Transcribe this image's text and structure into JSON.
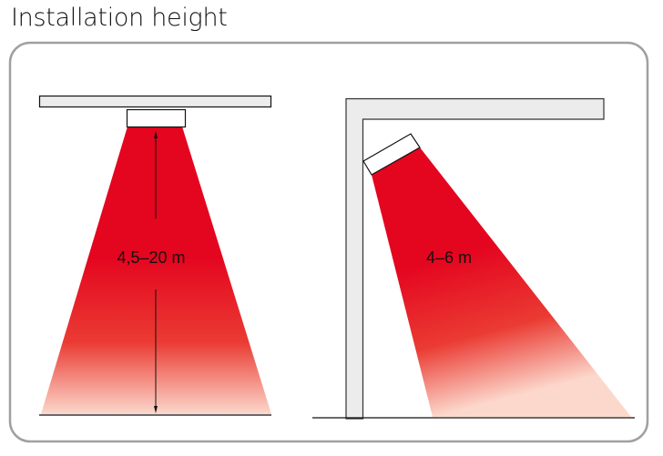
{
  "title": "Installation height",
  "colors": {
    "beam": "#e4051f",
    "beam_fade": "#fbd3c6",
    "structure": "#ececec",
    "frame": "#a0a0a0"
  },
  "left_diagram": {
    "height_label": "4,5–20 m"
  },
  "right_diagram": {
    "height_label": "4–6 m"
  }
}
